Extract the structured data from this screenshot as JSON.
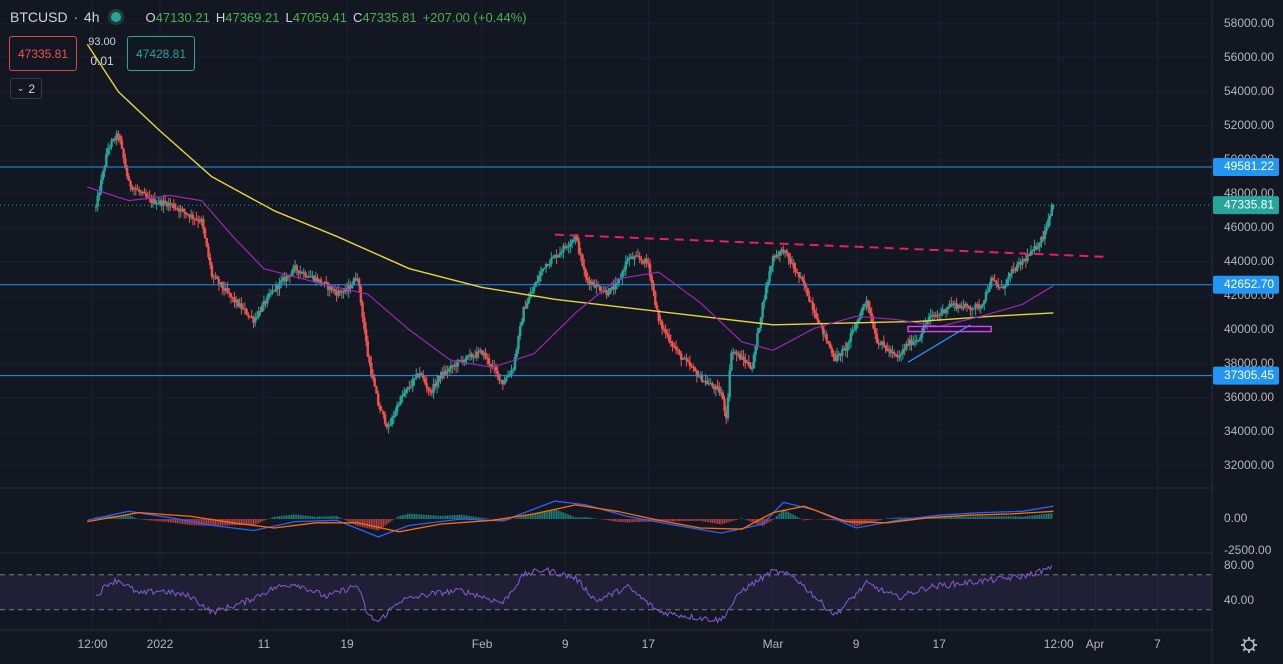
{
  "header": {
    "symbol": "BTCUSD",
    "interval": "4h",
    "open_label": "O",
    "open": "47130.21",
    "high_label": "H",
    "high": "47369.21",
    "low_label": "L",
    "low": "47059.41",
    "close_label": "C",
    "close": "47335.81",
    "change": "+207.00 (+0.44%)"
  },
  "trade_panel": {
    "sell_price": "47335.81",
    "buy_price": "47428.81",
    "spread_top": "93.00",
    "spread_bottom": "0.01"
  },
  "indicators_toggle": {
    "count": "2"
  },
  "colors": {
    "background": "#131722",
    "up_candle": "#26a69a",
    "down_candle": "#ef5350",
    "ma_yellow": "#e6d43a",
    "ma_purple": "#9c27b0",
    "horizontal_level": "#2196f3",
    "trendline_dashed": "#e91e63",
    "rsi": "#7e57c2",
    "last_price": "#26a69a"
  },
  "chart_data": [
    {
      "type": "candlestick",
      "title": "BTCUSD 4h",
      "x_tick_labels": [
        "12:00",
        "2022",
        "11",
        "19",
        "Feb",
        "9",
        "17",
        "Mar",
        "9",
        "17",
        "12:00",
        "Apr",
        "7"
      ],
      "y_tick_labels": [
        "32000.00",
        "34000.00",
        "36000.00",
        "38000.00",
        "40000.00",
        "42000.00",
        "44000.00",
        "46000.00",
        "48000.00",
        "50000.00",
        "52000.00",
        "54000.00",
        "56000.00",
        "58000.00"
      ],
      "ylim": [
        30700,
        59400
      ],
      "price_path": [
        [
          "Dec 25 20:00",
          47200
        ],
        [
          "Dec 27",
          50700
        ],
        [
          "Dec 28",
          51500
        ],
        [
          "Dec 29",
          48600
        ],
        [
          "Dec 31",
          47600
        ],
        [
          "Jan 2",
          47400
        ],
        [
          "Jan 4",
          46700
        ],
        [
          "Jan 5",
          46400
        ],
        [
          "Jan 6",
          43200
        ],
        [
          "Jan 8",
          41800
        ],
        [
          "Jan 10",
          40600
        ],
        [
          "Jan 12",
          42400
        ],
        [
          "Jan 14",
          43600
        ],
        [
          "Jan 16",
          43000
        ],
        [
          "Jan 18",
          42200
        ],
        [
          "Jan 19",
          42300
        ],
        [
          "Jan 20",
          43200
        ],
        [
          "Jan 21",
          38500
        ],
        [
          "Jan 22",
          35600
        ],
        [
          "Jan 23",
          34200
        ],
        [
          "Jan 24",
          35800
        ],
        [
          "Jan 26",
          37500
        ],
        [
          "Jan 27",
          36300
        ],
        [
          "Jan 28",
          37300
        ],
        [
          "Jan 30",
          38200
        ],
        [
          "Feb 1",
          38700
        ],
        [
          "Feb 3",
          36900
        ],
        [
          "Feb 4",
          37800
        ],
        [
          "Feb 5",
          41200
        ],
        [
          "Feb 7",
          43800
        ],
        [
          "Feb 8",
          44300
        ],
        [
          "Feb 10",
          45500
        ],
        [
          "Feb 11",
          43000
        ],
        [
          "Feb 13",
          42200
        ],
        [
          "Feb 14",
          42600
        ],
        [
          "Feb 15",
          44200
        ],
        [
          "Feb 16",
          44200
        ],
        [
          "Feb 17",
          43900
        ],
        [
          "Feb 18",
          40500
        ],
        [
          "Feb 20",
          38500
        ],
        [
          "Feb 22",
          37200
        ],
        [
          "Feb 24",
          36300
        ],
        [
          "Feb 24 12:00",
          34900
        ],
        [
          "Feb 25",
          38800
        ],
        [
          "Feb 27",
          37800
        ],
        [
          "Feb 28",
          41500
        ],
        [
          "Mar 1",
          44300
        ],
        [
          "Mar 2",
          44700
        ],
        [
          "Mar 4",
          42600
        ],
        [
          "Mar 6",
          39600
        ],
        [
          "Mar 7",
          38300
        ],
        [
          "Mar 8",
          38900
        ],
        [
          "Mar 10",
          41800
        ],
        [
          "Mar 11",
          39400
        ],
        [
          "Mar 13",
          38300
        ],
        [
          "Mar 14",
          39200
        ],
        [
          "Mar 15",
          39500
        ],
        [
          "Mar 16",
          40700
        ],
        [
          "Mar 17",
          40900
        ],
        [
          "Mar 18",
          41500
        ],
        [
          "Mar 20",
          41300
        ],
        [
          "Mar 21",
          41400
        ],
        [
          "Mar 22",
          42900
        ],
        [
          "Mar 23",
          42400
        ],
        [
          "Mar 24",
          43400
        ],
        [
          "Mar 25",
          44000
        ],
        [
          "Mar 26",
          44600
        ],
        [
          "Mar 27",
          45500
        ],
        [
          "Mar 27 20:00",
          47200
        ],
        [
          "Mar 28",
          47335.81
        ]
      ],
      "moving_average_yellow": [
        [
          "Dec 25",
          56800
        ],
        [
          "Dec 28",
          54000
        ],
        [
          "Jan 1",
          51700
        ],
        [
          "Jan 6",
          49000
        ],
        [
          "Jan 12",
          47000
        ],
        [
          "Jan 18",
          45500
        ],
        [
          "Jan 25",
          43600
        ],
        [
          "Feb 1",
          42500
        ],
        [
          "Feb 8",
          41800
        ],
        [
          "Feb 15",
          41300
        ],
        [
          "Feb 22",
          40800
        ],
        [
          "Mar 1",
          40300
        ],
        [
          "Mar 8",
          40400
        ],
        [
          "Mar 15",
          40500
        ],
        [
          "Mar 22",
          40800
        ],
        [
          "Mar 28",
          41000
        ]
      ],
      "moving_average_purple": [
        [
          "Dec 25",
          48400
        ],
        [
          "Dec 29",
          47600
        ],
        [
          "Jan 2",
          47900
        ],
        [
          "Jan 5",
          47600
        ],
        [
          "Jan 8",
          45500
        ],
        [
          "Jan 11",
          43600
        ],
        [
          "Jan 16",
          42800
        ],
        [
          "Jan 21",
          42100
        ],
        [
          "Jan 25",
          40000
        ],
        [
          "Jan 29",
          38200
        ],
        [
          "Feb 2",
          37800
        ],
        [
          "Feb 6",
          38600
        ],
        [
          "Feb 10",
          41000
        ],
        [
          "Feb 14",
          43000
        ],
        [
          "Feb 18",
          43400
        ],
        [
          "Feb 22",
          41600
        ],
        [
          "Feb 26",
          39300
        ],
        [
          "Mar 1",
          38800
        ],
        [
          "Mar 5",
          40100
        ],
        [
          "Mar 9",
          40800
        ],
        [
          "Mar 13",
          40600
        ],
        [
          "Mar 17",
          40200
        ],
        [
          "Mar 21",
          40800
        ],
        [
          "Mar 25",
          41500
        ],
        [
          "Mar 28",
          42600
        ]
      ],
      "horizontal_levels": [
        49581.22,
        42652.7,
        37305.45
      ],
      "last_price": 47335.81,
      "dashed_trendline": [
        [
          "Feb 8",
          45600
        ],
        [
          "Apr 2",
          44300
        ]
      ],
      "support_trendline": [
        [
          "Mar 14",
          38100
        ],
        [
          "Mar 20",
          40300
        ]
      ],
      "rectangle_zone": {
        "x": [
          "Mar 14",
          "Mar 22"
        ],
        "y": [
          39900,
          40200
        ]
      }
    },
    {
      "type": "histogram_line",
      "title": "MACD",
      "y_tick_labels": [
        "0.00",
        "-2500.00"
      ],
      "macd": [
        [
          "Dec 25",
          -100
        ],
        [
          "Dec 29",
          600
        ],
        [
          "Jan 2",
          100
        ],
        [
          "Jan 6",
          -500
        ],
        [
          "Jan 10",
          -900
        ],
        [
          "Jan 14",
          -200
        ],
        [
          "Jan 18",
          -100
        ],
        [
          "Jan 22",
          -1400
        ],
        [
          "Jan 25",
          -500
        ],
        [
          "Jan 30",
          0
        ],
        [
          "Feb 3",
          -150
        ],
        [
          "Feb 8",
          1400
        ],
        [
          "Feb 11",
          1100
        ],
        [
          "Feb 15",
          200
        ],
        [
          "Feb 19",
          -400
        ],
        [
          "Feb 24",
          -1100
        ],
        [
          "Feb 28",
          -400
        ],
        [
          "Mar 2",
          1300
        ],
        [
          "Mar 5",
          700
        ],
        [
          "Mar 9",
          -700
        ],
        [
          "Mar 13",
          -100
        ],
        [
          "Mar 17",
          300
        ],
        [
          "Mar 21",
          500
        ],
        [
          "Mar 25",
          600
        ],
        [
          "Mar 28",
          1000
        ]
      ],
      "signal": [
        [
          "Dec 25",
          -200
        ],
        [
          "Dec 30",
          500
        ],
        [
          "Jan 4",
          200
        ],
        [
          "Jan 8",
          -300
        ],
        [
          "Jan 12",
          -700
        ],
        [
          "Jan 16",
          -300
        ],
        [
          "Jan 20",
          -300
        ],
        [
          "Jan 24",
          -1000
        ],
        [
          "Jan 28",
          -400
        ],
        [
          "Feb 2",
          -100
        ],
        [
          "Feb 6",
          400
        ],
        [
          "Feb 10",
          1100
        ],
        [
          "Feb 14",
          600
        ],
        [
          "Feb 18",
          -100
        ],
        [
          "Feb 22",
          -700
        ],
        [
          "Feb 26",
          -800
        ],
        [
          "Mar 1",
          500
        ],
        [
          "Mar 4",
          1000
        ],
        [
          "Mar 8",
          -200
        ],
        [
          "Mar 12",
          -300
        ],
        [
          "Mar 16",
          100
        ],
        [
          "Mar 20",
          300
        ],
        [
          "Mar 24",
          400
        ],
        [
          "Mar 28",
          600
        ]
      ]
    },
    {
      "type": "line",
      "title": "RSI",
      "y_tick_labels": [
        "80.00",
        "40.00"
      ],
      "bands": [
        70,
        30
      ],
      "rsi": [
        [
          "Dec 25",
          35
        ],
        [
          "Dec 27",
          60
        ],
        [
          "Dec 28",
          64
        ],
        [
          "Dec 30",
          48
        ],
        [
          "Jan 1",
          52
        ],
        [
          "Jan 4",
          45
        ],
        [
          "Jan 6",
          27
        ],
        [
          "Jan 9",
          38
        ],
        [
          "Jan 12",
          55
        ],
        [
          "Jan 14",
          60
        ],
        [
          "Jan 17",
          45
        ],
        [
          "Jan 20",
          58
        ],
        [
          "Jan 21",
          24
        ],
        [
          "Jan 22",
          16
        ],
        [
          "Jan 24",
          40
        ],
        [
          "Jan 27",
          48
        ],
        [
          "Jan 30",
          52
        ],
        [
          "Feb 3",
          38
        ],
        [
          "Feb 5",
          70
        ],
        [
          "Feb 7",
          76
        ],
        [
          "Feb 10",
          66
        ],
        [
          "Feb 12",
          40
        ],
        [
          "Feb 15",
          56
        ],
        [
          "Feb 18",
          28
        ],
        [
          "Feb 21",
          22
        ],
        [
          "Feb 24",
          18
        ],
        [
          "Feb 26",
          52
        ],
        [
          "Mar 1",
          74
        ],
        [
          "Mar 3",
          68
        ],
        [
          "Mar 6",
          34
        ],
        [
          "Mar 7",
          24
        ],
        [
          "Mar 10",
          60
        ],
        [
          "Mar 13",
          44
        ],
        [
          "Mar 16",
          56
        ],
        [
          "Mar 19",
          60
        ],
        [
          "Mar 22",
          64
        ],
        [
          "Mar 25",
          68
        ],
        [
          "Mar 28",
          78
        ]
      ]
    }
  ]
}
